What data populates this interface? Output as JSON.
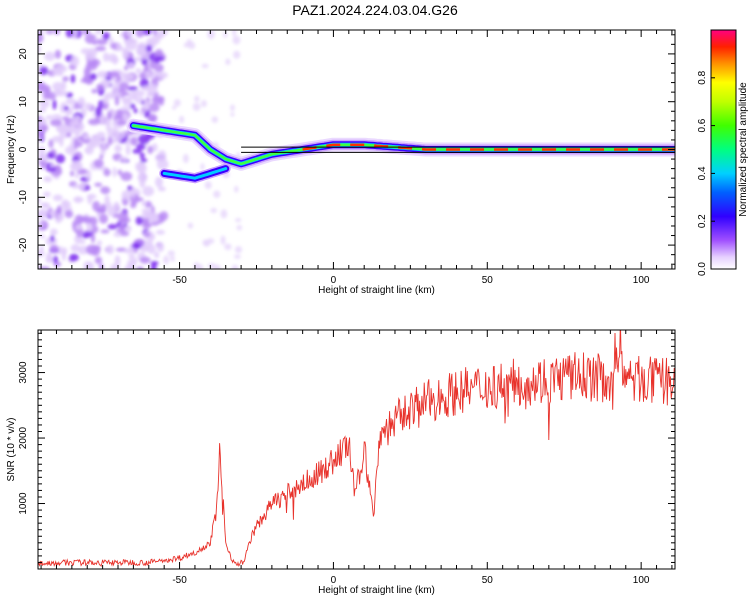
{
  "title": "PAZ1.2024.224.03.04.G26",
  "chart_data": [
    {
      "type": "heatmap",
      "xlabel": "Height of straight line (km)",
      "ylabel": "Frequency (Hz)",
      "xlim": [
        -96,
        111
      ],
      "ylim": [
        -25,
        25
      ],
      "xticks": [
        -50,
        0,
        50,
        100
      ],
      "yticks": [
        -20,
        -10,
        0,
        10,
        20
      ],
      "colorbar": {
        "label": "Normalized spectral amplitude",
        "range": [
          0,
          1
        ],
        "ticks": [
          "0.0",
          "0.2",
          "0.4",
          "0.6",
          "0.8"
        ]
      },
      "ridge": [
        {
          "x": -65,
          "y": 5
        },
        {
          "x": -55,
          "y": 4
        },
        {
          "x": -45,
          "y": 3
        },
        {
          "x": -40,
          "y": 0
        },
        {
          "x": -35,
          "y": -2
        },
        {
          "x": -30,
          "y": -3
        },
        {
          "x": -20,
          "y": -1
        },
        {
          "x": -10,
          "y": 0
        },
        {
          "x": 0,
          "y": 1
        },
        {
          "x": 10,
          "y": 1
        },
        {
          "x": 20,
          "y": 0.5
        },
        {
          "x": 30,
          "y": 0
        },
        {
          "x": 50,
          "y": 0
        },
        {
          "x": 75,
          "y": 0
        },
        {
          "x": 100,
          "y": 0
        },
        {
          "x": 111,
          "y": 0
        }
      ],
      "lower_branch": [
        {
          "x": -55,
          "y": -5
        },
        {
          "x": -50,
          "y": -5.5
        },
        {
          "x": -45,
          "y": -6
        },
        {
          "x": -40,
          "y": -5
        },
        {
          "x": -35,
          "y": -4
        }
      ]
    },
    {
      "type": "line",
      "xlabel": "Height of straight line (km)",
      "ylabel": "SNR (10 * v/v)",
      "xlim": [
        -96,
        111
      ],
      "ylim": [
        0,
        3650
      ],
      "xticks": [
        -50,
        0,
        50,
        100
      ],
      "yticks": [
        1000,
        2000,
        3000
      ],
      "series": [
        {
          "color": "#e8322b",
          "x": [
            -96,
            -80,
            -60,
            -50,
            -45,
            -40,
            -38,
            -37,
            -36,
            -35,
            -33,
            -31,
            -29,
            -27,
            -25,
            -22,
            -20,
            -15,
            -10,
            -5,
            0,
            5,
            7,
            10,
            13,
            15,
            20,
            25,
            30,
            40,
            50,
            60,
            70,
            80,
            90,
            93,
            95,
            100,
            105,
            111
          ],
          "values": [
            90,
            100,
            100,
            170,
            250,
            400,
            900,
            1750,
            1150,
            400,
            150,
            70,
            120,
            450,
            650,
            850,
            1000,
            1150,
            1300,
            1450,
            1650,
            1900,
            1100,
            1850,
            800,
            2050,
            2250,
            2450,
            2550,
            2700,
            2800,
            2850,
            2900,
            2950,
            2900,
            3500,
            2850,
            2900,
            2850,
            2880
          ]
        }
      ]
    }
  ]
}
